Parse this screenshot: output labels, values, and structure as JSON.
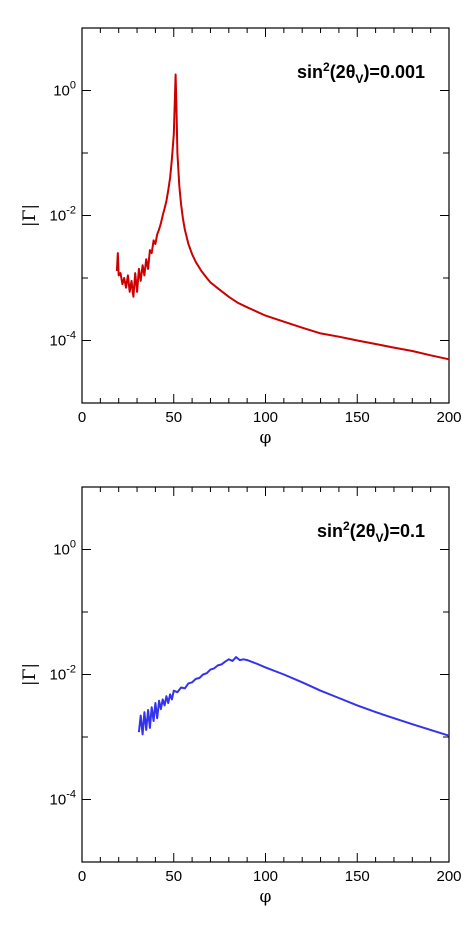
{
  "chart_data": [
    {
      "type": "line",
      "xlabel": "φ",
      "ylabel": "|Γ|",
      "xlim": [
        0,
        200
      ],
      "ylim_log10": [
        -5,
        1
      ],
      "y_scale": "log",
      "xticks": [
        0,
        50,
        100,
        150,
        200
      ],
      "xtick_labels": [
        "0",
        "50",
        "100",
        "150",
        "200"
      ],
      "yticks_log10": [
        0,
        -2,
        -4
      ],
      "ytick_base": "10",
      "ytick_exponents": [
        "0",
        "-2",
        "-4"
      ],
      "annotation": {
        "prefix": "sin",
        "sup": "2",
        "mid": "(2θ",
        "sub": "V",
        "suffix": ")=0.001"
      },
      "color": "#cc0000",
      "series": [
        {
          "x": [
            19,
            19.5,
            20,
            21,
            22,
            23,
            24,
            25,
            26,
            27,
            28,
            29,
            30,
            31,
            32,
            33,
            34,
            35,
            36,
            37,
            38,
            39,
            40,
            41,
            42,
            43,
            44,
            45,
            46,
            47,
            48,
            49,
            50,
            50.5,
            51,
            51.5,
            52,
            53,
            54,
            55,
            56,
            58,
            60,
            62,
            65,
            68,
            70,
            75,
            80,
            85,
            90,
            100,
            110,
            120,
            130,
            140,
            150,
            160,
            170,
            180,
            190,
            200
          ],
          "y": [
            0.0013,
            0.0025,
            0.0011,
            0.0012,
            0.0008,
            0.001,
            0.0007,
            0.0011,
            0.0006,
            0.0009,
            0.0005,
            0.0012,
            0.0006,
            0.0014,
            0.0009,
            0.0016,
            0.0011,
            0.002,
            0.0014,
            0.0028,
            0.0025,
            0.004,
            0.0035,
            0.005,
            0.006,
            0.0075,
            0.01,
            0.013,
            0.017,
            0.025,
            0.04,
            0.08,
            0.2,
            0.6,
            1.8,
            0.5,
            0.1,
            0.03,
            0.015,
            0.009,
            0.006,
            0.0035,
            0.0024,
            0.0018,
            0.0013,
            0.001,
            0.00085,
            0.00065,
            0.0005,
            0.0004,
            0.00034,
            0.00025,
            0.0002,
            0.00016,
            0.00013,
            0.000115,
            0.0001,
            8.8e-05,
            7.7e-05,
            6.8e-05,
            5.8e-05,
            5e-05
          ]
        }
      ]
    },
    {
      "type": "line",
      "xlabel": "φ",
      "ylabel": "|Γ|",
      "xlim": [
        0,
        200
      ],
      "ylim_log10": [
        -5,
        1
      ],
      "y_scale": "log",
      "xticks": [
        0,
        50,
        100,
        150,
        200
      ],
      "xtick_labels": [
        "0",
        "50",
        "100",
        "150",
        "200"
      ],
      "yticks_log10": [
        0,
        -2,
        -4
      ],
      "ytick_base": "10",
      "ytick_exponents": [
        "0",
        "-2",
        "-4"
      ],
      "annotation": {
        "prefix": "sin",
        "sup": "2",
        "mid": "(2θ",
        "sub": "V",
        "suffix": ")=0.1"
      },
      "color": "#3333ee",
      "series": [
        {
          "x": [
            31,
            32,
            33,
            34,
            35,
            36,
            37,
            38,
            39,
            40,
            41,
            42,
            43,
            44,
            45,
            46,
            47,
            48,
            49,
            50,
            52,
            54,
            56,
            58,
            60,
            62,
            64,
            66,
            68,
            70,
            72,
            74,
            76,
            78,
            80,
            82,
            84,
            86,
            88,
            90,
            95,
            100,
            110,
            120,
            130,
            140,
            150,
            160,
            170,
            180,
            190,
            200
          ],
          "y": [
            0.0012,
            0.0022,
            0.0011,
            0.0025,
            0.0013,
            0.0027,
            0.0014,
            0.003,
            0.0018,
            0.0035,
            0.002,
            0.0038,
            0.0028,
            0.004,
            0.0032,
            0.0045,
            0.0035,
            0.0048,
            0.004,
            0.0055,
            0.0052,
            0.0062,
            0.006,
            0.0072,
            0.0075,
            0.0085,
            0.0088,
            0.01,
            0.0105,
            0.012,
            0.0125,
            0.014,
            0.0145,
            0.016,
            0.0175,
            0.0165,
            0.019,
            0.017,
            0.0175,
            0.017,
            0.015,
            0.013,
            0.01,
            0.0075,
            0.0055,
            0.0042,
            0.0032,
            0.0025,
            0.002,
            0.0016,
            0.0013,
            0.00105
          ]
        }
      ]
    }
  ]
}
